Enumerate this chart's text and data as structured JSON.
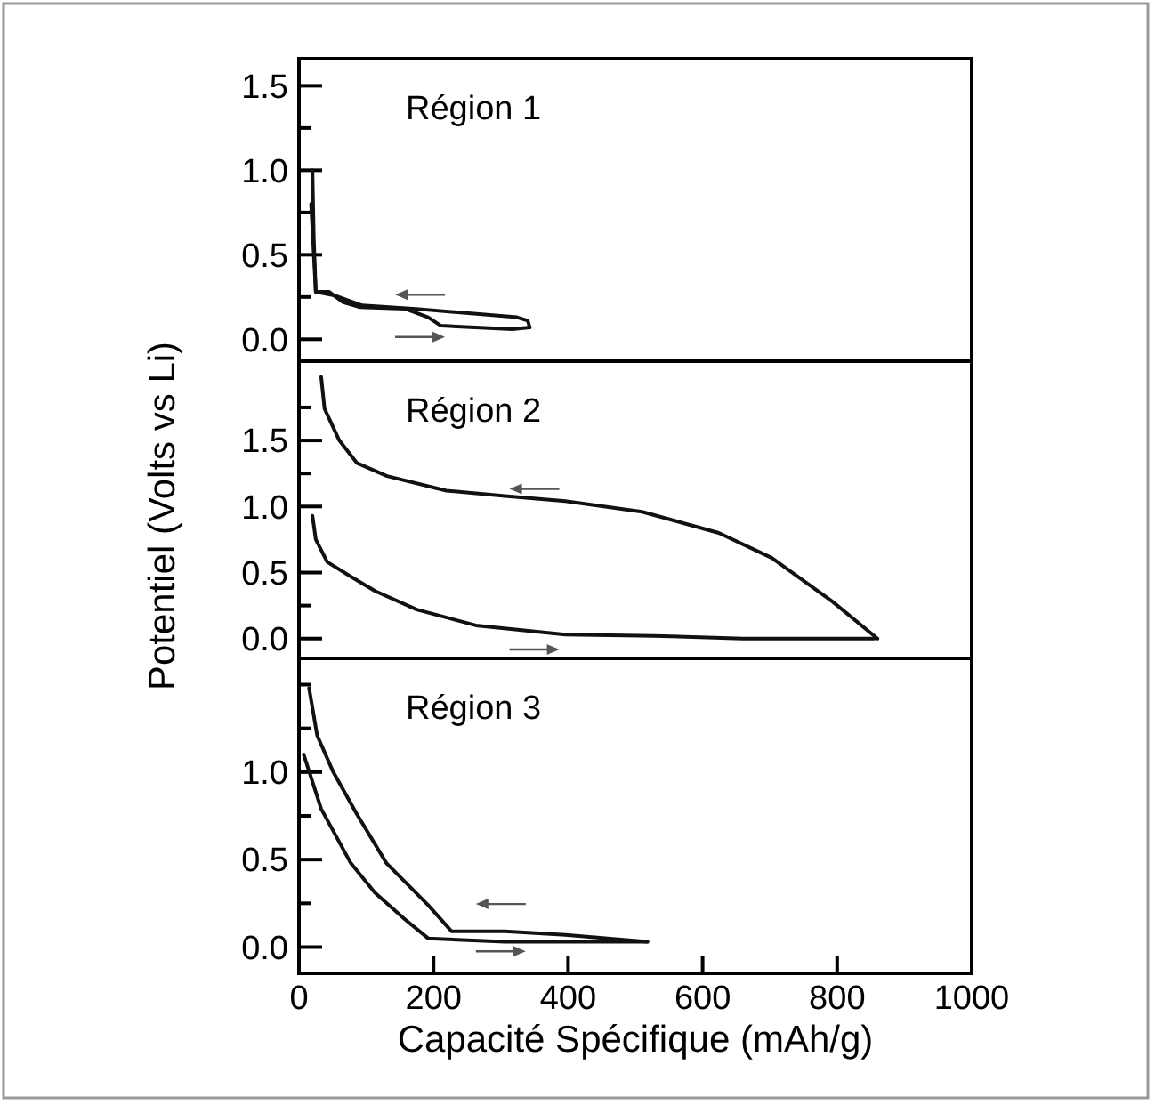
{
  "chart_data": [
    {
      "type": "line",
      "annotations": [
        "Région 1"
      ],
      "xlim": [
        0,
        1000
      ],
      "ylim": [
        -0.13,
        1.66
      ],
      "tick_labels": "y",
      "line_style": "solid",
      "marker": "none",
      "grid": false,
      "yticks": [
        {
          "value": 0,
          "label": "0.0"
        },
        {
          "value": 0.25,
          "label": null
        },
        {
          "value": 0.5,
          "label": "0.5"
        },
        {
          "value": 0.75,
          "label": null
        },
        {
          "value": 1,
          "label": "1.0"
        },
        {
          "value": 1.25,
          "label": null
        },
        {
          "value": 1.5,
          "label": "1.5"
        }
      ],
      "series": [
        {
          "color": "#111111",
          "x": [
            20,
            22,
            25,
            45,
            65,
            91,
            158,
            192,
            211,
            317,
            343
          ],
          "values": [
            1.0,
            0.6,
            0.28,
            0.28,
            0.22,
            0.19,
            0.18,
            0.13,
            0.08,
            0.06,
            0.07
          ]
        },
        {
          "color": "#111111",
          "x": [
            343,
            340,
            324,
            264,
            174,
            94,
            52,
            25,
            18
          ],
          "values": [
            0.07,
            0.11,
            0.13,
            0.15,
            0.18,
            0.2,
            0.26,
            0.28,
            0.8
          ]
        }
      ]
    },
    {
      "type": "line",
      "annotations": [
        "Région 2"
      ],
      "ylabel": "Potentiel (Volts vs Li)",
      "xlim": [
        0,
        1000
      ],
      "ylim": [
        -0.15,
        2.1
      ],
      "tick_labels": "y",
      "line_style": "solid",
      "marker": "none",
      "grid": false,
      "yticks": [
        {
          "value": 0,
          "label": "0.0"
        },
        {
          "value": 0.25,
          "label": null
        },
        {
          "value": 0.5,
          "label": "0.5"
        },
        {
          "value": 1,
          "label": "1.0"
        },
        {
          "value": 1.25,
          "label": null
        },
        {
          "value": 1.5,
          "label": "1.5"
        },
        {
          "value": 1.75,
          "label": null
        }
      ],
      "series": [
        {
          "color": "#111111",
          "x": [
            33,
            38,
            60,
            86,
            131,
            219,
            306,
            396,
            510,
            624,
            703,
            793,
            860
          ],
          "values": [
            1.98,
            1.74,
            1.5,
            1.33,
            1.23,
            1.12,
            1.08,
            1.04,
            0.96,
            0.8,
            0.61,
            0.28,
            0.0
          ]
        },
        {
          "color": "#111111",
          "x": [
            20,
            25,
            42,
            77,
            113,
            175,
            263,
            396,
            528,
            660,
            855
          ],
          "values": [
            0.93,
            0.75,
            0.58,
            0.47,
            0.36,
            0.22,
            0.1,
            0.03,
            0.02,
            0.0,
            0.0
          ]
        }
      ]
    },
    {
      "type": "line",
      "annotations": [
        "Région 3"
      ],
      "xlabel": "Capacité Spécifique (mAh/g)",
      "xlim": [
        0,
        1000
      ],
      "ylim": [
        -0.15,
        1.65
      ],
      "line_style": "solid",
      "marker": "none",
      "grid": false,
      "xticks": [
        0,
        200,
        400,
        600,
        800,
        1000
      ],
      "yticks": [
        {
          "value": 0,
          "label": "0.0"
        },
        {
          "value": 0.25,
          "label": null
        },
        {
          "value": 0.5,
          "label": "0.5"
        },
        {
          "value": 0.75,
          "label": null
        },
        {
          "value": 1,
          "label": "1.0"
        },
        {
          "value": 1.25,
          "label": null
        },
        {
          "value": 1.5,
          "label": null
        }
      ],
      "series": [
        {
          "color": "#111111",
          "x": [
            15,
            27,
            51,
            86,
            130,
            192,
            227,
            306,
            396,
            518
          ],
          "values": [
            1.48,
            1.21,
            1.0,
            0.76,
            0.48,
            0.24,
            0.09,
            0.09,
            0.07,
            0.03
          ]
        },
        {
          "color": "#111111",
          "x": [
            7,
            33,
            77,
            113,
            157,
            192,
            306,
            439,
            518
          ],
          "values": [
            1.1,
            0.79,
            0.48,
            0.31,
            0.16,
            0.05,
            0.03,
            0.03,
            0.03
          ]
        }
      ]
    }
  ]
}
